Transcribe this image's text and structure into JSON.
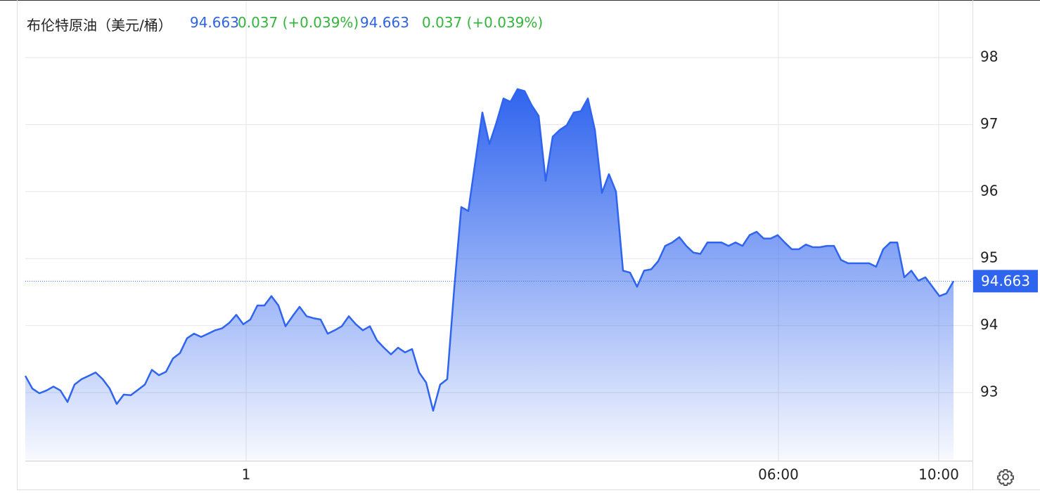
{
  "header": [
    {
      "text": "布伦特原油（美元/桶）",
      "color": "#222222"
    },
    {
      "text": "94.663",
      "color": "#2f64e0"
    },
    {
      "text": "0.037 (+0.039%)",
      "color": "#35b43c"
    },
    {
      "text": "94.663",
      "color": "#2f64e0"
    },
    {
      "text": "0.037 (+0.039%)",
      "color": "#35b43c"
    }
  ],
  "chart_data": {
    "type": "area",
    "color": "#2f64ee",
    "x": [
      0,
      1,
      2,
      3,
      4,
      5,
      6,
      7,
      8,
      9,
      10,
      11,
      12,
      13,
      14,
      15,
      16,
      17,
      18,
      19,
      20,
      21,
      22,
      23,
      24,
      25,
      26,
      27,
      28,
      29,
      30,
      31,
      32,
      33,
      34,
      35,
      36,
      37,
      38,
      39,
      40,
      41,
      42,
      43,
      44,
      45,
      46,
      47,
      48,
      49,
      50,
      51,
      52,
      53,
      54,
      55,
      56,
      57,
      58,
      59,
      60,
      61,
      62,
      63,
      64,
      65,
      66,
      67,
      68,
      69,
      70,
      71,
      72,
      73,
      74,
      75,
      76,
      77,
      78,
      79,
      80,
      81,
      82,
      83,
      84,
      85,
      86,
      87,
      88,
      89,
      90,
      91,
      92,
      93,
      94,
      95,
      96,
      97,
      98,
      99,
      100,
      101,
      102,
      103,
      104,
      105,
      106,
      107,
      108,
      109,
      110,
      111,
      112,
      113,
      114,
      115,
      116,
      117,
      118,
      119,
      120,
      121,
      122,
      123,
      124,
      125,
      126,
      127,
      128,
      129,
      130,
      131,
      132
    ],
    "values": [
      93.25,
      93.06,
      92.99,
      93.03,
      93.09,
      93.03,
      92.86,
      93.12,
      93.2,
      93.25,
      93.3,
      93.2,
      93.06,
      92.83,
      92.97,
      92.96,
      93.04,
      93.12,
      93.34,
      93.26,
      93.31,
      93.51,
      93.59,
      93.81,
      93.88,
      93.83,
      93.88,
      93.93,
      93.96,
      94.04,
      94.16,
      94.02,
      94.09,
      94.3,
      94.3,
      94.44,
      94.3,
      93.99,
      94.14,
      94.28,
      94.14,
      94.11,
      94.09,
      93.88,
      93.93,
      93.99,
      94.14,
      94.02,
      93.93,
      93.99,
      93.78,
      93.67,
      93.57,
      93.67,
      93.6,
      93.65,
      93.3,
      93.15,
      92.73,
      93.12,
      93.2,
      94.56,
      95.77,
      95.71,
      96.45,
      97.18,
      96.71,
      97.03,
      97.39,
      97.34,
      97.53,
      97.5,
      97.29,
      97.13,
      96.16,
      96.82,
      96.92,
      96.99,
      97.18,
      97.2,
      97.39,
      96.92,
      95.98,
      96.26,
      96,
      94.82,
      94.79,
      94.58,
      94.82,
      94.84,
      94.96,
      95.19,
      95.24,
      95.32,
      95.19,
      95.09,
      95.07,
      95.24,
      95.24,
      95.24,
      95.19,
      95.24,
      95.19,
      95.35,
      95.4,
      95.3,
      95.3,
      95.35,
      95.24,
      95.14,
      95.14,
      95.21,
      95.17,
      95.17,
      95.19,
      95.19,
      94.98,
      94.93,
      94.93,
      94.93,
      94.93,
      94.88,
      95.14,
      95.24,
      95.24,
      94.72,
      94.82,
      94.67,
      94.72,
      94.58,
      94.44,
      94.48,
      94.663
    ],
    "last_price": 94.663,
    "xlim": [
      0,
      134.7
    ],
    "xticks": [
      {
        "value": 31.4,
        "label": "1"
      },
      {
        "value": 107.1,
        "label": "06:00"
      },
      {
        "value": 129.9,
        "label": "10:00"
      }
    ],
    "ylim": [
      92,
      98.8
    ],
    "yticks": [
      93,
      94,
      95,
      96,
      97,
      98
    ],
    "grid": true
  }
}
